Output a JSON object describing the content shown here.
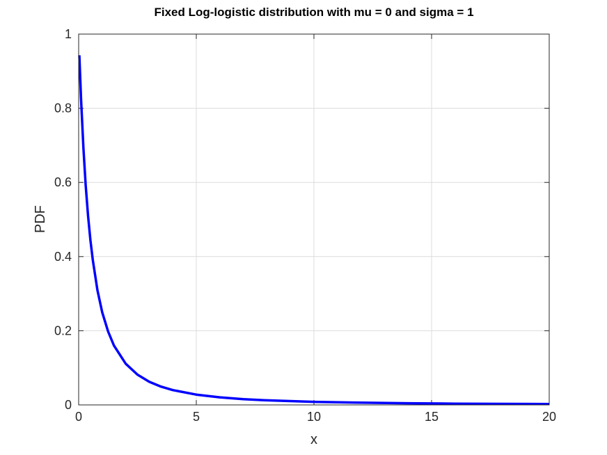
{
  "chart_data": {
    "type": "line",
    "title": "Fixed Log-logistic distribution with mu = 0 and sigma = 1",
    "xlabel": "x",
    "ylabel": "PDF",
    "xlim": [
      0,
      20
    ],
    "ylim": [
      0,
      1
    ],
    "xticks": [
      0,
      5,
      10,
      15,
      20
    ],
    "xtick_labels": [
      "0",
      "5",
      "10",
      "15",
      "20"
    ],
    "yticks": [
      0,
      0.2,
      0.4,
      0.6,
      0.8,
      1
    ],
    "ytick_labels": [
      "0",
      "0.2",
      "0.4",
      "0.6",
      "0.8",
      "1"
    ],
    "grid": true,
    "series": [
      {
        "name": "PDF",
        "color": "#0000ff",
        "x": [
          0.03,
          0.1,
          0.2,
          0.3,
          0.4,
          0.5,
          0.6,
          0.8,
          1,
          1.25,
          1.5,
          2,
          2.5,
          3,
          3.5,
          4,
          5,
          6,
          7,
          8,
          10,
          12,
          14,
          16,
          18,
          20
        ],
        "y": [
          0.943,
          0.826,
          0.694,
          0.592,
          0.51,
          0.444,
          0.391,
          0.309,
          0.25,
          0.198,
          0.16,
          0.111,
          0.0816,
          0.0625,
          0.0494,
          0.04,
          0.0278,
          0.0204,
          0.0156,
          0.0123,
          0.00826,
          0.00592,
          0.00444,
          0.00346,
          0.00277,
          0.00227
        ]
      }
    ]
  }
}
